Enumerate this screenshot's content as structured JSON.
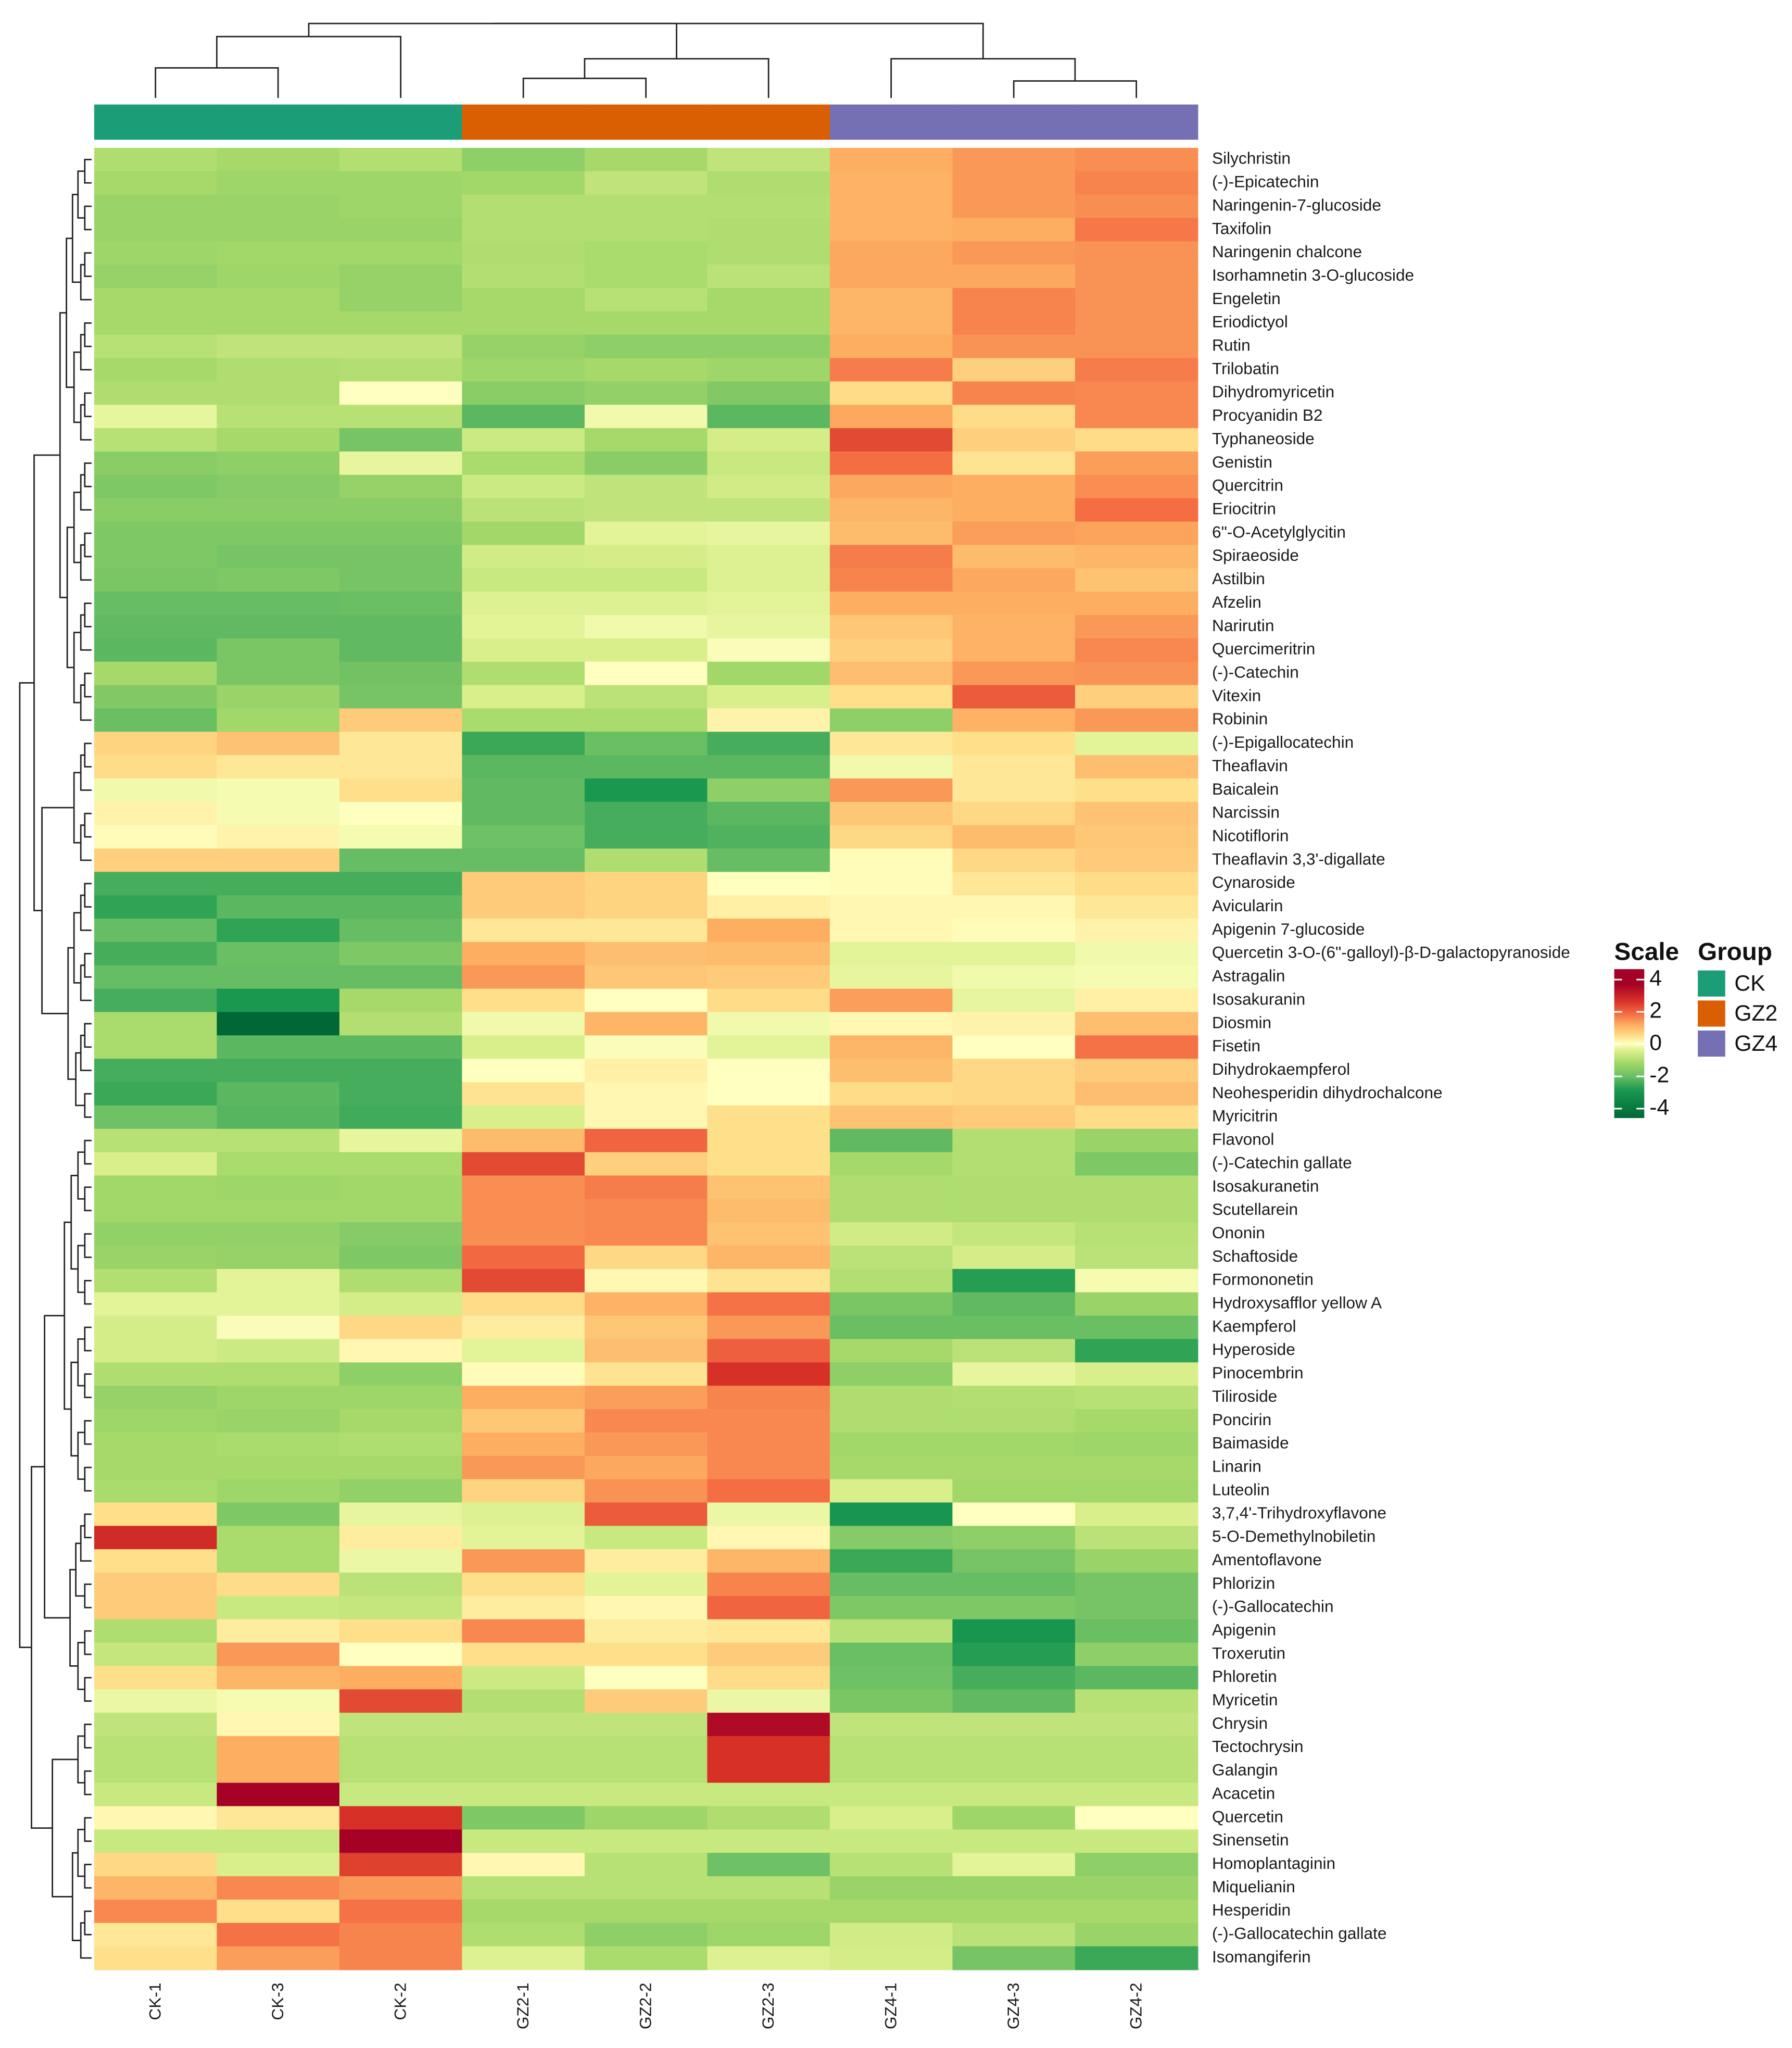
{
  "chart_data": {
    "type": "heatmap",
    "columns": [
      "CK-1",
      "CK-3",
      "CK-2",
      "GZ2-1",
      "GZ2-2",
      "GZ2-3",
      "GZ4-1",
      "GZ4-3",
      "GZ4-2"
    ],
    "column_groups": [
      "CK",
      "CK",
      "CK",
      "GZ2",
      "GZ2",
      "GZ2",
      "GZ4",
      "GZ4",
      "GZ4"
    ],
    "rows": [
      {
        "name": "Silychristin",
        "values": [
          -0.9,
          -1.0,
          -0.85,
          -1.3,
          -1.0,
          -0.7,
          1.0,
          1.2,
          1.3
        ]
      },
      {
        "name": "(-)-Epicatechin",
        "values": [
          -1.0,
          -1.1,
          -1.1,
          -1.05,
          -0.7,
          -0.9,
          0.95,
          1.2,
          1.4
        ]
      },
      {
        "name": "Naringenin-7-glucoside",
        "values": [
          -1.15,
          -1.15,
          -1.1,
          -0.85,
          -0.85,
          -0.85,
          0.95,
          1.2,
          1.3
        ]
      },
      {
        "name": "Taxifolin",
        "values": [
          -1.15,
          -1.15,
          -1.15,
          -0.85,
          -0.85,
          -0.9,
          0.95,
          1.0,
          1.5
        ]
      },
      {
        "name": "Naringenin chalcone",
        "values": [
          -1.1,
          -1.05,
          -1.05,
          -0.9,
          -0.95,
          -0.9,
          1.05,
          1.2,
          1.25
        ]
      },
      {
        "name": "Isorhamnetin 3-O-glucoside",
        "values": [
          -1.2,
          -1.1,
          -1.2,
          -0.85,
          -0.95,
          -0.75,
          1.05,
          1.05,
          1.25
        ]
      },
      {
        "name": "Engeletin",
        "values": [
          -1.0,
          -1.0,
          -1.2,
          -1.0,
          -0.8,
          -1.0,
          0.9,
          1.4,
          1.25
        ]
      },
      {
        "name": "Eriodictyol",
        "values": [
          -1.0,
          -1.0,
          -1.0,
          -1.0,
          -1.0,
          -1.0,
          0.9,
          1.4,
          1.25
        ]
      },
      {
        "name": "Rutin",
        "values": [
          -0.8,
          -0.7,
          -0.7,
          -1.2,
          -1.3,
          -1.3,
          1.0,
          1.25,
          1.25
        ]
      },
      {
        "name": "Trilobatin",
        "values": [
          -1.0,
          -0.9,
          -0.85,
          -1.1,
          -1.0,
          -1.1,
          1.45,
          0.6,
          1.45
        ]
      },
      {
        "name": "Dihydromyricetin",
        "values": [
          -0.9,
          -0.9,
          0.0,
          -1.35,
          -1.25,
          -1.45,
          0.45,
          1.4,
          1.35
        ]
      },
      {
        "name": "Procyanidin B2",
        "values": [
          -0.25,
          -0.8,
          -0.8,
          -1.9,
          -0.15,
          -1.9,
          1.05,
          0.45,
          1.35
        ]
      },
      {
        "name": "Typhaneoside",
        "values": [
          -0.8,
          -1.0,
          -1.6,
          -0.55,
          -1.0,
          -0.45,
          2.0,
          0.6,
          0.45
        ]
      },
      {
        "name": "Genistin",
        "values": [
          -1.35,
          -1.3,
          -0.25,
          -0.95,
          -1.35,
          -0.6,
          1.6,
          0.35,
          1.15
        ]
      },
      {
        "name": "Quercitrin",
        "values": [
          -1.5,
          -1.4,
          -1.2,
          -0.55,
          -0.7,
          -0.5,
          1.05,
          1.0,
          1.3
        ]
      },
      {
        "name": "Eriocitrin",
        "values": [
          -1.35,
          -1.35,
          -1.35,
          -0.75,
          -0.7,
          -0.7,
          0.9,
          1.0,
          1.6
        ]
      },
      {
        "name": "6\"-O-Acetylglycitin",
        "values": [
          -1.5,
          -1.5,
          -1.5,
          -1.05,
          -0.3,
          -0.25,
          0.85,
          1.15,
          1.1
        ]
      },
      {
        "name": "Spiraeoside",
        "values": [
          -1.5,
          -1.6,
          -1.6,
          -0.5,
          -0.45,
          -0.35,
          1.45,
          0.85,
          0.9
        ]
      },
      {
        "name": "Astilbin",
        "values": [
          -1.55,
          -1.5,
          -1.6,
          -0.6,
          -0.6,
          -0.35,
          1.4,
          1.05,
          0.75
        ]
      },
      {
        "name": "Afzelin",
        "values": [
          -1.8,
          -1.8,
          -1.75,
          -0.35,
          -0.35,
          -0.3,
          1.0,
          1.0,
          1.0
        ]
      },
      {
        "name": "Narirutin",
        "values": [
          -1.85,
          -1.85,
          -1.85,
          -0.3,
          -0.15,
          -0.25,
          0.7,
          0.95,
          1.2
        ]
      },
      {
        "name": "Quercimeritrin",
        "values": [
          -1.9,
          -1.55,
          -1.85,
          -0.4,
          -0.4,
          -0.05,
          0.6,
          0.95,
          1.35
        ]
      },
      {
        "name": "(-)-Catechin",
        "values": [
          -1.0,
          -1.55,
          -1.65,
          -0.9,
          0.0,
          -1.05,
          0.8,
          1.2,
          1.25
        ]
      },
      {
        "name": "Vitexin",
        "values": [
          -1.45,
          -1.15,
          -1.6,
          -0.4,
          -0.75,
          -0.4,
          0.4,
          1.8,
          0.6
        ]
      },
      {
        "name": "Robinin",
        "values": [
          -1.75,
          -1.05,
          0.65,
          -0.95,
          -0.95,
          0.15,
          -1.3,
          0.95,
          1.2
        ]
      },
      {
        "name": "(-)-Epigallocatechin",
        "values": [
          0.55,
          0.75,
          0.3,
          -2.2,
          -1.75,
          -2.1,
          0.3,
          0.4,
          -0.3
        ]
      },
      {
        "name": "Theaflavin",
        "values": [
          0.45,
          0.3,
          0.3,
          -1.9,
          -1.9,
          -1.9,
          -0.15,
          0.3,
          0.8
        ]
      },
      {
        "name": "Baicalein",
        "values": [
          -0.15,
          -0.1,
          0.4,
          -1.85,
          -2.5,
          -1.3,
          1.2,
          0.3,
          0.4
        ]
      },
      {
        "name": "Narcissin",
        "values": [
          0.15,
          -0.1,
          0.0,
          -1.85,
          -2.1,
          -1.9,
          0.7,
          0.5,
          0.75
        ]
      },
      {
        "name": "Nicotiflorin",
        "values": [
          0.05,
          0.15,
          -0.1,
          -1.7,
          -2.1,
          -2.0,
          0.5,
          0.85,
          0.7
        ]
      },
      {
        "name": "Theaflavin 3,3'-digallate",
        "values": [
          0.6,
          0.6,
          -1.8,
          -1.8,
          -0.9,
          -1.8,
          0.05,
          0.5,
          0.65
        ]
      },
      {
        "name": "Cynaroside",
        "values": [
          -2.1,
          -2.1,
          -2.1,
          0.65,
          0.55,
          0.0,
          0.05,
          0.3,
          0.45
        ]
      },
      {
        "name": "Avicularin",
        "values": [
          -2.3,
          -1.9,
          -1.9,
          0.65,
          0.55,
          0.2,
          0.1,
          0.1,
          0.3
        ]
      },
      {
        "name": "Apigenin 7-glucoside",
        "values": [
          -1.8,
          -2.3,
          -1.8,
          0.3,
          0.3,
          1.0,
          0.1,
          0.05,
          0.15
        ]
      },
      {
        "name": "Quercetin 3-O-(6\"-galloyl)-β-D-galactopyranoside",
        "values": [
          -2.1,
          -1.75,
          -1.5,
          1.0,
          0.8,
          0.85,
          -0.3,
          -0.3,
          -0.15
        ]
      },
      {
        "name": "Astragalin",
        "values": [
          -1.8,
          -1.8,
          -1.8,
          1.2,
          0.7,
          0.65,
          -0.25,
          -0.15,
          -0.1
        ]
      },
      {
        "name": "Isosakuranin",
        "values": [
          -2.1,
          -2.5,
          -1.0,
          0.4,
          0.0,
          0.45,
          1.15,
          -0.25,
          0.2
        ]
      },
      {
        "name": "Diosmin",
        "values": [
          -0.95,
          -4.0,
          -0.85,
          -0.15,
          0.9,
          -0.15,
          0.1,
          0.15,
          0.8
        ]
      },
      {
        "name": "Fisetin",
        "values": [
          -0.95,
          -1.9,
          -1.9,
          -0.4,
          -0.05,
          -0.3,
          0.9,
          0.0,
          1.55
        ]
      },
      {
        "name": "Dihydrokaempferol",
        "values": [
          -2.1,
          -2.1,
          -2.1,
          0.0,
          0.2,
          0.0,
          0.8,
          0.5,
          0.65
        ]
      },
      {
        "name": "Neohesperidin dihydrochalcone",
        "values": [
          -2.2,
          -1.9,
          -2.1,
          0.35,
          0.1,
          0.0,
          0.45,
          0.5,
          0.8
        ]
      },
      {
        "name": "Myricitrin",
        "values": [
          -1.7,
          -1.95,
          -2.15,
          -0.4,
          0.1,
          0.4,
          0.75,
          0.65,
          0.45
        ]
      },
      {
        "name": "Flavonol",
        "values": [
          -0.8,
          -0.8,
          -0.25,
          0.85,
          1.7,
          0.4,
          -1.85,
          -0.85,
          -1.15
        ]
      },
      {
        "name": "(-)-Catechin gallate",
        "values": [
          -0.4,
          -0.95,
          -0.95,
          2.0,
          0.6,
          0.4,
          -1.0,
          -0.85,
          -1.5
        ]
      },
      {
        "name": "Isosakuranetin",
        "values": [
          -1.05,
          -1.1,
          -1.05,
          1.3,
          1.45,
          0.75,
          -0.9,
          -0.9,
          -0.9
        ]
      },
      {
        "name": "Scutellarein",
        "values": [
          -1.05,
          -1.05,
          -1.05,
          1.3,
          1.35,
          0.85,
          -0.9,
          -0.9,
          -0.9
        ]
      },
      {
        "name": "Ononin",
        "values": [
          -1.25,
          -1.25,
          -1.4,
          1.3,
          1.35,
          0.75,
          -0.5,
          -0.65,
          -0.8
        ]
      },
      {
        "name": "Schaftoside",
        "values": [
          -1.15,
          -1.2,
          -1.5,
          1.65,
          0.5,
          0.9,
          -0.75,
          -0.45,
          -0.75
        ]
      },
      {
        "name": "Formononetin",
        "values": [
          -0.85,
          -0.3,
          -0.9,
          2.0,
          0.1,
          0.35,
          -0.85,
          -2.4,
          -0.1
        ]
      },
      {
        "name": "Hydroxysafflor yellow A",
        "values": [
          -0.3,
          -0.3,
          -0.45,
          0.45,
          0.95,
          1.55,
          -1.55,
          -1.85,
          -1.15
        ]
      },
      {
        "name": "Kaempferol",
        "values": [
          -0.45,
          -0.05,
          0.5,
          0.25,
          0.7,
          1.2,
          -1.75,
          -1.75,
          -1.75
        ]
      },
      {
        "name": "Hyperoside",
        "values": [
          -0.45,
          -0.55,
          0.1,
          -0.3,
          0.8,
          1.75,
          -1.0,
          -0.75,
          -2.3
        ]
      },
      {
        "name": "Pinocembrin",
        "values": [
          -0.9,
          -0.9,
          -1.3,
          0.05,
          0.35,
          2.3,
          -1.3,
          -0.25,
          -0.4
        ]
      },
      {
        "name": "Tiliroside",
        "values": [
          -1.2,
          -1.1,
          -1.1,
          1.0,
          1.15,
          1.4,
          -0.9,
          -0.85,
          -0.8
        ]
      },
      {
        "name": "Poncirin",
        "values": [
          -1.1,
          -1.15,
          -1.0,
          0.7,
          1.35,
          1.35,
          -0.9,
          -0.9,
          -1.0
        ]
      },
      {
        "name": "Baimaside",
        "values": [
          -1.0,
          -0.95,
          -0.9,
          1.0,
          1.2,
          1.35,
          -1.05,
          -1.05,
          -1.1
        ]
      },
      {
        "name": "Linarin",
        "values": [
          -1.0,
          -1.0,
          -1.0,
          1.2,
          1.05,
          1.35,
          -1.0,
          -1.0,
          -1.0
        ]
      },
      {
        "name": "Luteolin",
        "values": [
          -0.95,
          -1.1,
          -1.25,
          0.55,
          1.25,
          1.6,
          -0.4,
          -1.05,
          -1.05
        ]
      },
      {
        "name": "3,7,4'-Trihydroxyflavone",
        "values": [
          0.4,
          -1.5,
          -0.25,
          -0.35,
          1.8,
          -0.2,
          -2.6,
          0.0,
          -0.4
        ]
      },
      {
        "name": "5-O-Demethylnobiletin",
        "values": [
          2.4,
          -0.95,
          0.25,
          -0.3,
          -0.6,
          0.1,
          -1.4,
          -1.3,
          -0.75
        ]
      },
      {
        "name": "Amentoflavone",
        "values": [
          0.4,
          -0.95,
          -0.2,
          1.2,
          0.25,
          0.9,
          -2.2,
          -1.6,
          -1.15
        ]
      },
      {
        "name": "Phlorizin",
        "values": [
          0.65,
          0.45,
          -0.75,
          0.4,
          -0.3,
          1.4,
          -1.8,
          -1.8,
          -1.6
        ]
      },
      {
        "name": "(-)-Gallocatechin",
        "values": [
          0.65,
          -0.6,
          -0.65,
          0.25,
          0.1,
          1.7,
          -1.5,
          -1.5,
          -1.6
        ]
      },
      {
        "name": "Apigenin",
        "values": [
          -0.9,
          0.25,
          0.4,
          1.35,
          0.25,
          0.3,
          -0.8,
          -2.6,
          -1.75
        ]
      },
      {
        "name": "Troxerutin",
        "values": [
          -0.65,
          1.2,
          0.0,
          0.4,
          0.4,
          0.65,
          -1.75,
          -2.4,
          -1.3
        ]
      },
      {
        "name": "Phloretin",
        "values": [
          0.4,
          0.9,
          1.0,
          -0.55,
          0.0,
          0.45,
          -1.7,
          -2.1,
          -1.9
        ]
      },
      {
        "name": "Myricetin",
        "values": [
          -0.2,
          -0.1,
          2.0,
          -0.85,
          0.65,
          -0.2,
          -1.55,
          -1.85,
          -0.8
        ]
      },
      {
        "name": "Chrysin",
        "values": [
          -0.7,
          0.1,
          -0.7,
          -0.7,
          -0.7,
          3.0,
          -0.7,
          -0.7,
          -0.7
        ]
      },
      {
        "name": "Tectochrysin",
        "values": [
          -0.8,
          1.0,
          -0.8,
          -0.8,
          -0.8,
          2.3,
          -0.8,
          -0.8,
          -0.8
        ]
      },
      {
        "name": "Galangin",
        "values": [
          -0.8,
          1.0,
          -0.8,
          -0.8,
          -0.8,
          2.3,
          -0.8,
          -0.8,
          -0.8
        ]
      },
      {
        "name": "Acacetin",
        "values": [
          -0.6,
          3.2,
          -0.6,
          -0.6,
          -0.6,
          -0.6,
          -0.6,
          -0.6,
          -0.6
        ]
      },
      {
        "name": "Quercetin",
        "values": [
          0.1,
          0.3,
          2.3,
          -1.5,
          -1.1,
          -0.9,
          -0.4,
          -1.1,
          0.0
        ]
      },
      {
        "name": "Sinensetin",
        "values": [
          -0.6,
          -0.6,
          3.2,
          -0.6,
          -0.6,
          -0.6,
          -0.6,
          -0.6,
          -0.6
        ]
      },
      {
        "name": "Homoplantaginin",
        "values": [
          0.5,
          -0.4,
          2.1,
          0.1,
          -0.8,
          -1.7,
          -0.8,
          -0.3,
          -1.3
        ]
      },
      {
        "name": "Miquelianin",
        "values": [
          0.9,
          1.35,
          1.2,
          -0.8,
          -0.8,
          -0.8,
          -1.15,
          -1.15,
          -1.15
        ]
      },
      {
        "name": "Hesperidin",
        "values": [
          1.35,
          0.4,
          1.55,
          -1.0,
          -1.0,
          -1.0,
          -1.0,
          -1.0,
          -1.0
        ]
      },
      {
        "name": "(-)-Gallocatechin gallate",
        "values": [
          0.3,
          1.55,
          1.4,
          -0.9,
          -1.3,
          -1.1,
          -0.5,
          -0.75,
          -1.15
        ]
      },
      {
        "name": "Isomangiferin",
        "values": [
          0.4,
          1.15,
          1.4,
          -0.35,
          -0.95,
          -0.35,
          -0.45,
          -1.6,
          -2.2
        ]
      }
    ],
    "color_range": [
      -4,
      4
    ],
    "legend": {
      "scale_title": "Scale",
      "scale_ticks": [
        "4",
        "2",
        "0",
        "-2",
        "-4"
      ],
      "group_title": "Group",
      "groups": [
        {
          "label": "CK",
          "color": "#1b9e77"
        },
        {
          "label": "GZ2",
          "color": "#d95f02"
        },
        {
          "label": "GZ4",
          "color": "#7570b3"
        }
      ],
      "placement": "right"
    }
  }
}
